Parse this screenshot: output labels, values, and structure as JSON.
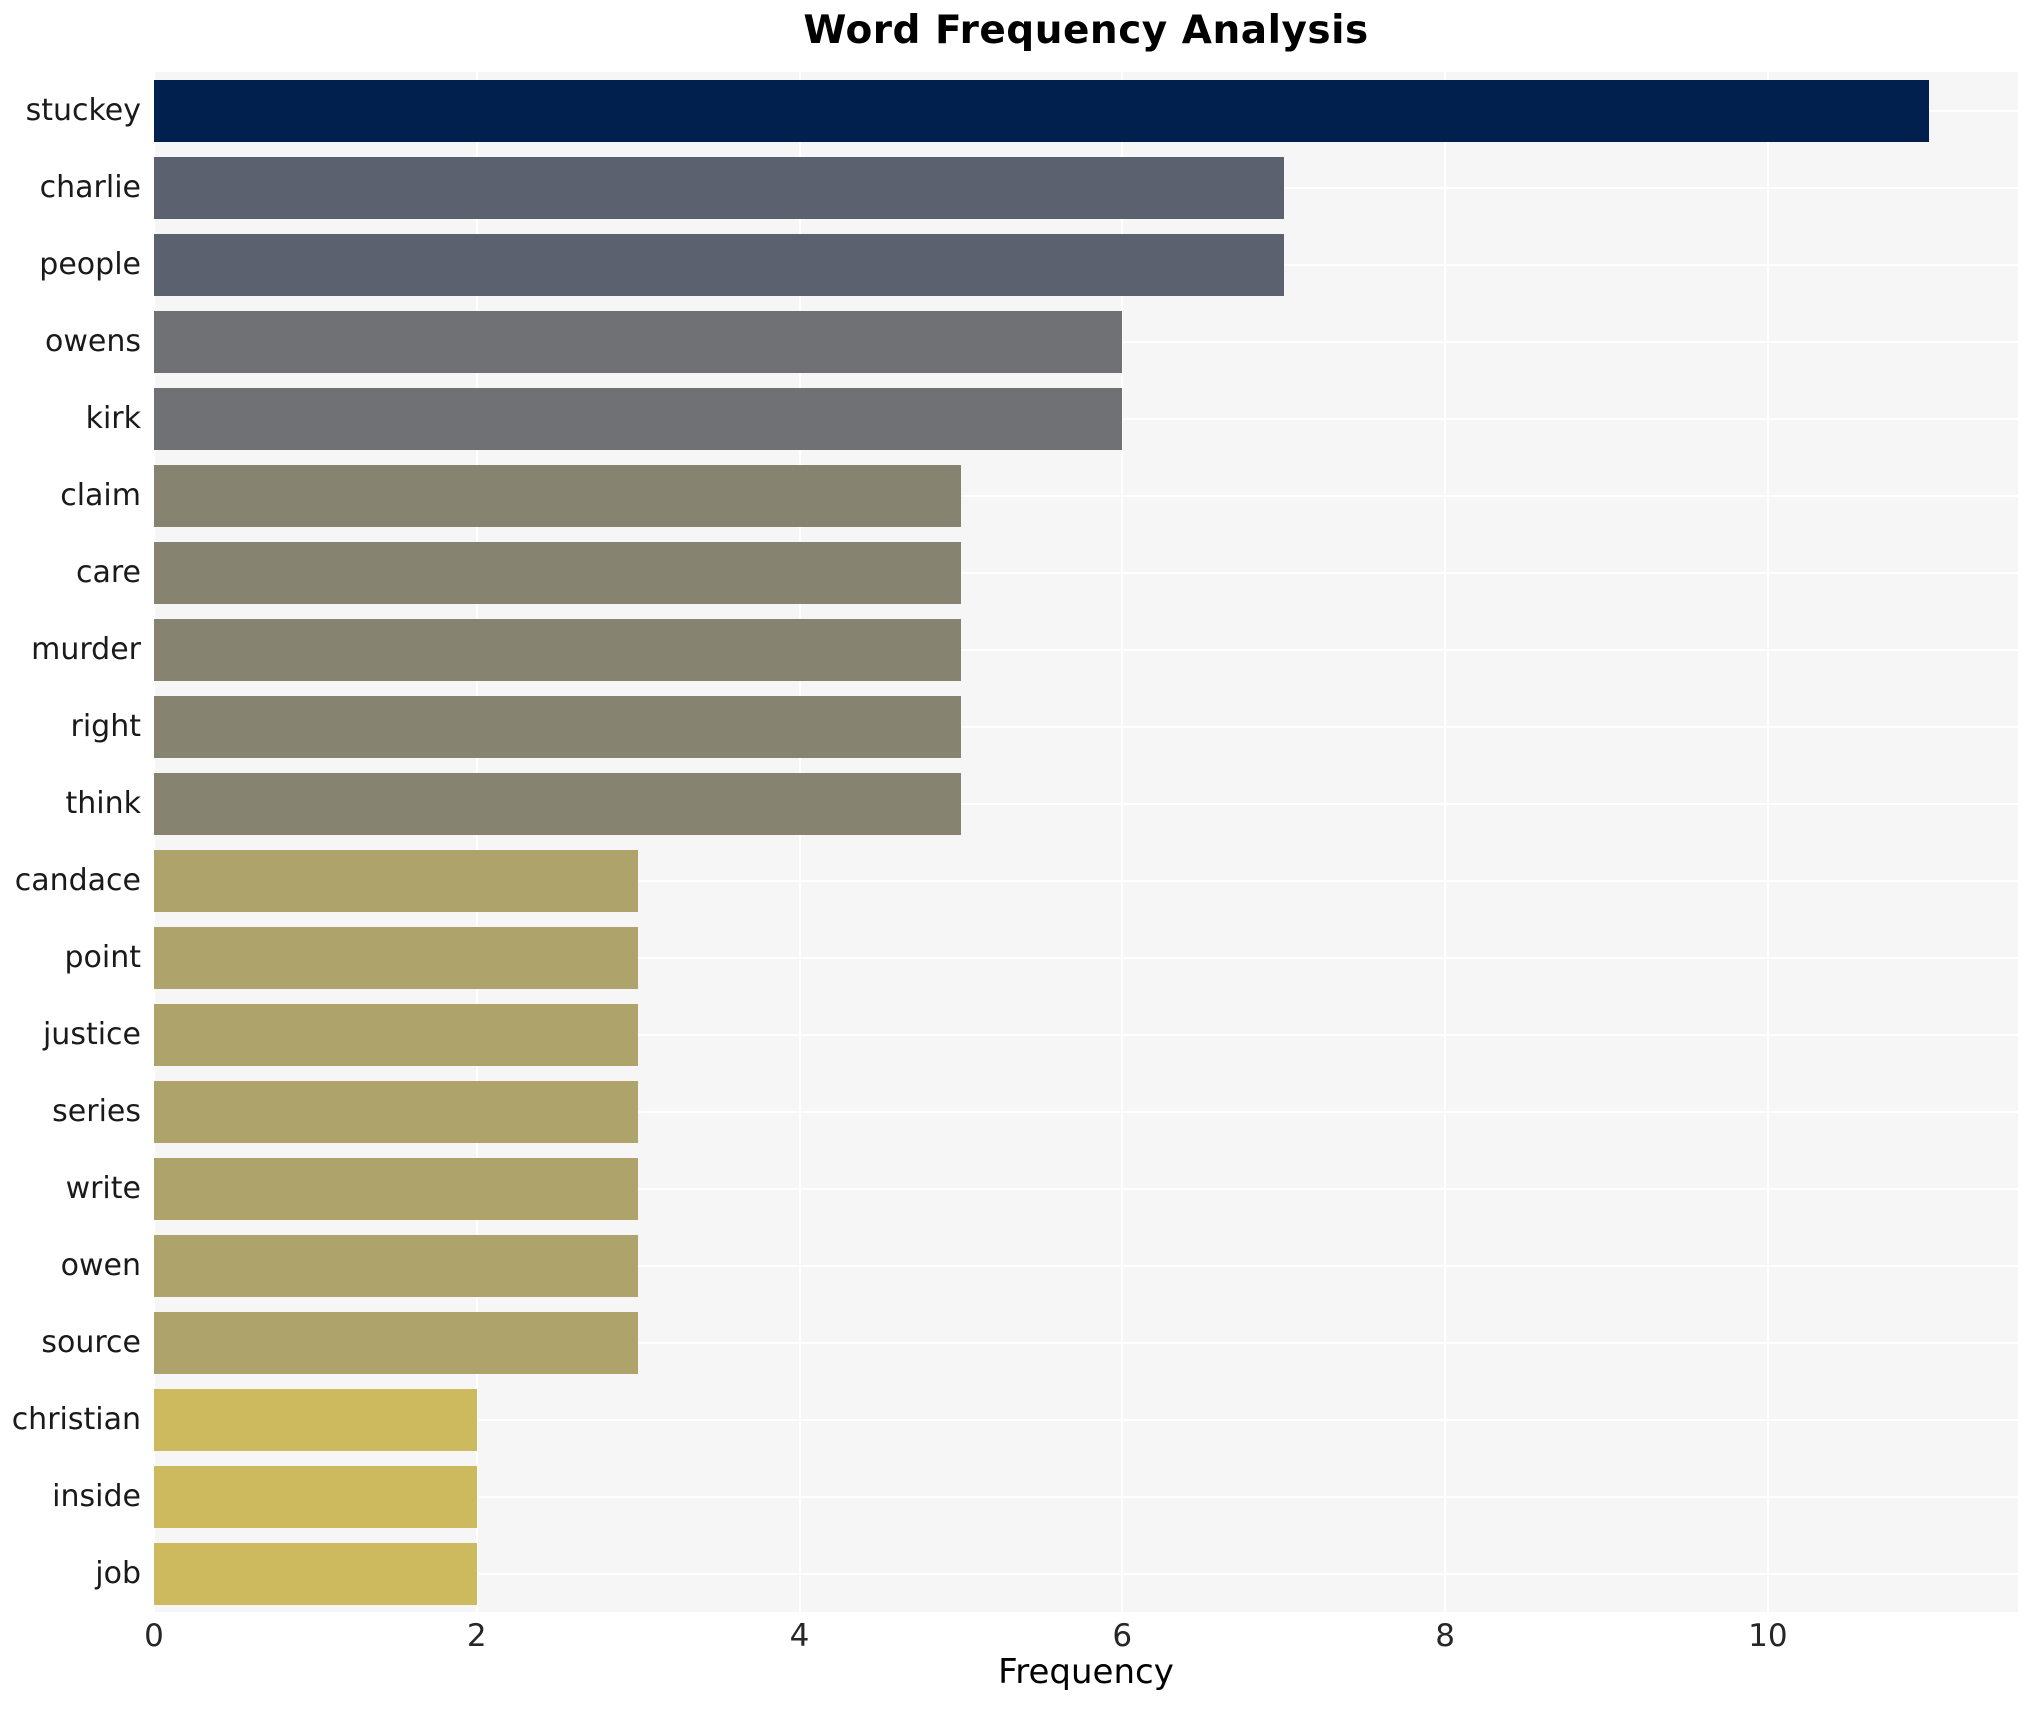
{
  "chart_data": {
    "type": "bar",
    "orientation": "horizontal",
    "title": "Word Frequency Analysis",
    "xlabel": "Frequency",
    "ylabel": "",
    "categories": [
      "stuckey",
      "charlie",
      "people",
      "owens",
      "kirk",
      "claim",
      "care",
      "murder",
      "right",
      "think",
      "candace",
      "point",
      "justice",
      "series",
      "write",
      "owen",
      "source",
      "christian",
      "inside",
      "job"
    ],
    "values": [
      11,
      7,
      7,
      6,
      6,
      5,
      5,
      5,
      5,
      5,
      3,
      3,
      3,
      3,
      3,
      3,
      3,
      2,
      2,
      2
    ],
    "bar_colors": [
      "#01204d",
      "#5c6170",
      "#5c6170",
      "#707174",
      "#707174",
      "#868471",
      "#868471",
      "#868471",
      "#868471",
      "#868471",
      "#aea46b",
      "#aea46b",
      "#aea46b",
      "#aea46b",
      "#aea46b",
      "#aea46b",
      "#aea46b",
      "#cdba5e",
      "#cdba5e",
      "#cdba5e"
    ],
    "xlim": [
      0,
      11.55
    ],
    "xticks": [
      0,
      2,
      4,
      6,
      8,
      10
    ],
    "grid": true,
    "legend": false,
    "plot_bg_color": "#f6f6f7",
    "grid_color": "#ffffff"
  }
}
